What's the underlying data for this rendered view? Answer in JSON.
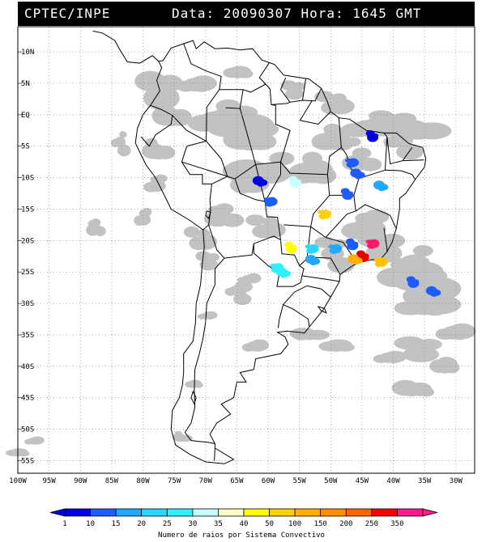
{
  "header": {
    "agency": "CPTEC/INPE",
    "datetime": "Data: 20090307 Hora: 1645 GMT"
  },
  "map": {
    "lat_labels": [
      "10N",
      "5N",
      "EQ",
      "5S",
      "10S",
      "15S",
      "20S",
      "25S",
      "30S",
      "35S",
      "40S",
      "45S",
      "50S",
      "55S"
    ],
    "lat_values": [
      10,
      5,
      0,
      -5,
      -10,
      -15,
      -20,
      -25,
      -30,
      -35,
      -40,
      -45,
      -50,
      -55
    ],
    "lon_labels": [
      "100W",
      "95W",
      "90W",
      "85W",
      "80W",
      "75W",
      "70W",
      "65W",
      "60W",
      "55W",
      "50W",
      "45W",
      "40W",
      "35W",
      "30W"
    ],
    "lon_values": [
      -100,
      -95,
      -90,
      -85,
      -80,
      -75,
      -70,
      -65,
      -60,
      -55,
      -50,
      -45,
      -40,
      -35,
      -30
    ],
    "lon_range": [
      -100,
      -27
    ],
    "lat_range": [
      -57,
      14
    ],
    "grid": "dotted",
    "colors": {
      "land_outline": "#000000",
      "cloud": "#b8b8b8",
      "background": "#ffffff"
    },
    "convective_cells": [
      {
        "lon": -43.5,
        "lat": -20.5,
        "class": "250",
        "color": "#ff1a6e"
      },
      {
        "lon": -44.8,
        "lat": -22.4,
        "class": "350",
        "color": "#e00000"
      },
      {
        "lon": -46.0,
        "lat": -23.2,
        "class": "100",
        "color": "#ffb000"
      },
      {
        "lon": -42.2,
        "lat": -23.4,
        "class": "100",
        "color": "#ffc000"
      },
      {
        "lon": -36.8,
        "lat": -26.5,
        "class": "10",
        "color": "#1f5cff"
      },
      {
        "lon": -33.5,
        "lat": -28.3,
        "class": "10",
        "color": "#1f5cff"
      },
      {
        "lon": -49.5,
        "lat": -21.3,
        "class": "15",
        "color": "#21a8ff"
      },
      {
        "lon": -46.5,
        "lat": -20.5,
        "class": "10",
        "color": "#1f5cff"
      },
      {
        "lon": -57.5,
        "lat": -25.3,
        "class": "25",
        "color": "#2ff0ff"
      },
      {
        "lon": -58.8,
        "lat": -24.3,
        "class": "25",
        "color": "#2ff0ff"
      },
      {
        "lon": -55.6,
        "lat": -10.6,
        "class": "30",
        "color": "#c8ffff"
      },
      {
        "lon": -61.2,
        "lat": -10.8,
        "class": "1",
        "color": "#0000e0"
      },
      {
        "lon": -59.8,
        "lat": -13.8,
        "class": "1",
        "color": "#1f5cff"
      },
      {
        "lon": -47.3,
        "lat": -12.5,
        "class": "10",
        "color": "#1f5cff"
      },
      {
        "lon": -45.6,
        "lat": -9.6,
        "class": "10",
        "color": "#1f5cff"
      },
      {
        "lon": -46.8,
        "lat": -7.6,
        "class": "1",
        "color": "#1f5cff"
      },
      {
        "lon": -43.3,
        "lat": -3.3,
        "class": "1",
        "color": "#0000e0"
      },
      {
        "lon": -41.9,
        "lat": -11.5,
        "class": "15",
        "color": "#21a8ff"
      },
      {
        "lon": -51.2,
        "lat": -15.8,
        "class": "40",
        "color": "#ffd000"
      },
      {
        "lon": -56.3,
        "lat": -21.0,
        "class": "35",
        "color": "#ffff00"
      },
      {
        "lon": -52.8,
        "lat": -23.3,
        "class": "15",
        "color": "#21a8ff"
      },
      {
        "lon": -53.2,
        "lat": -21.3,
        "class": "20",
        "color": "#2ad8ff"
      }
    ]
  },
  "legend": {
    "labels": [
      "1",
      "10",
      "15",
      "20",
      "25",
      "30",
      "35",
      "40",
      "50",
      "100",
      "150",
      "200",
      "250",
      "350"
    ],
    "colors": [
      "#0000e0",
      "#1f5cff",
      "#21a8ff",
      "#2ad8ff",
      "#2ff0ff",
      "#c8ffff",
      "#ffffc8",
      "#ffff00",
      "#ffd000",
      "#ffb000",
      "#ff9000",
      "#ff6400",
      "#ff0000",
      "#ff1a8e"
    ],
    "caption": "Numero de raios por Sistema Convectivo"
  }
}
